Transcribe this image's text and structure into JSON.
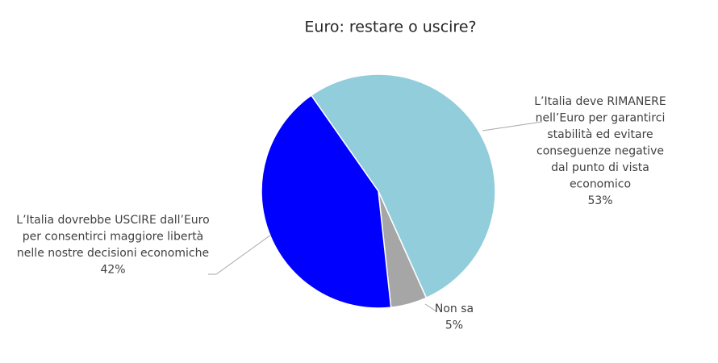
{
  "chart_data": {
    "type": "pie",
    "title": "Euro: restare o uscire?",
    "categories": [
      [
        "L’Italia deve RIMANERE",
        "nell’Euro per garantirci",
        "stabilità ed evitare",
        "conseguenze negative",
        "dal punto di vista",
        "economico"
      ],
      [
        "Non sa"
      ],
      [
        "L’Italia dovrebbe USCIRE dall’Euro",
        "per consentirci maggiore libertà",
        "nelle nostre decisioni economiche"
      ]
    ],
    "values": [
      53,
      5,
      42
    ],
    "value_labels": [
      "53%",
      "5%",
      "42%"
    ],
    "colors": [
      "#92cddc",
      "#a6a6a6",
      "#0000ff"
    ]
  }
}
